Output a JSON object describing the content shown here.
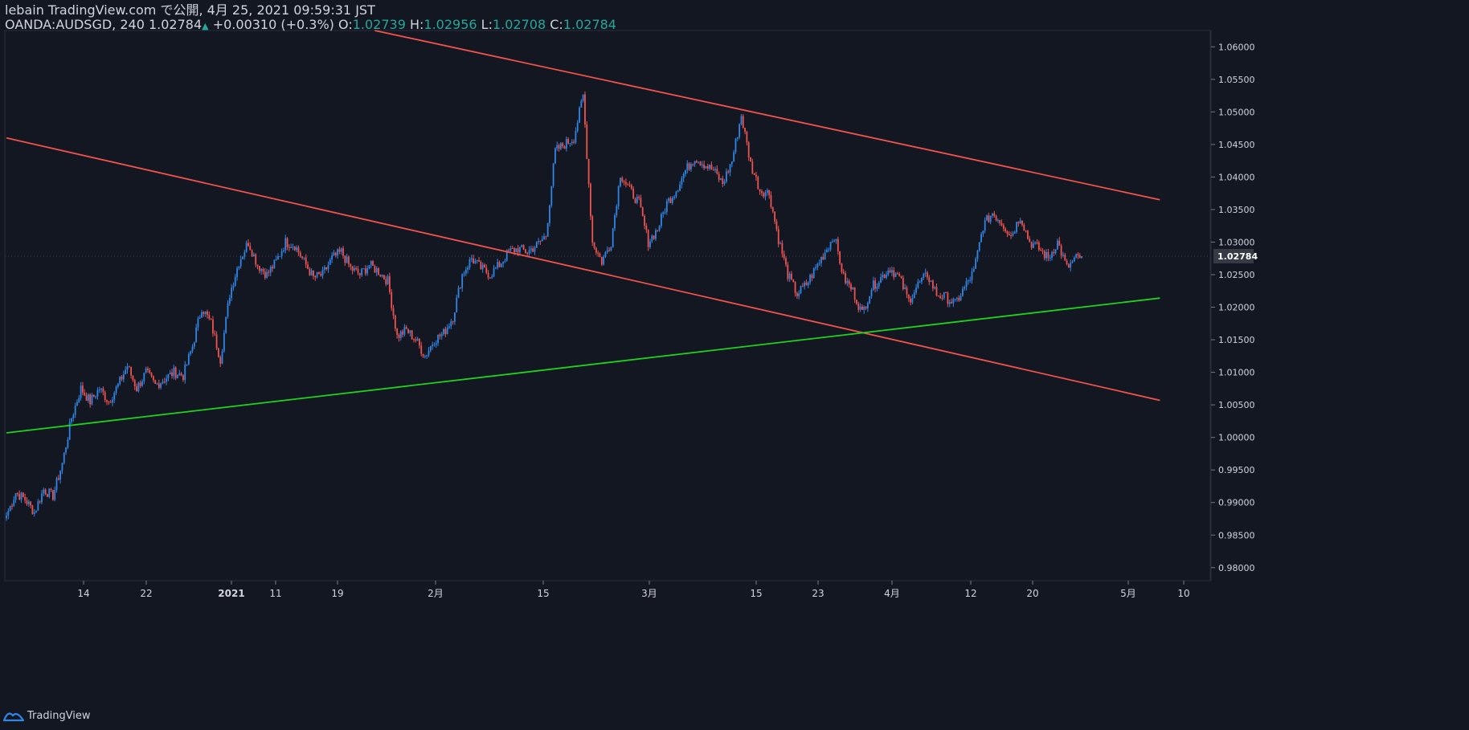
{
  "header": {
    "published_line": "lebain TradingView.com で公開, 4月 25, 2021 09:59:31 JST",
    "symbol_interval": "OANDA:AUDSGD, 240",
    "last_price": "1.02784",
    "change": "+0.00310 (+0.3%)",
    "open_label": "O:",
    "open_value": "1.02739",
    "high_label": "H:",
    "high_value": "1.02956",
    "low_label": "L:",
    "low_value": "1.02708",
    "close_label": "C:",
    "close_value": "1.02784"
  },
  "footer": {
    "brand": "TradingView"
  },
  "colors": {
    "background": "#131722",
    "up": "#2f86e6",
    "down": "#ef5350",
    "channel_line": "#f2534c",
    "support_line": "#1fd21f",
    "axis_text": "#d1d4dc",
    "price_tag_bg": "#363a45",
    "up_text": "#26a69a"
  },
  "chart_data": {
    "type": "candlestick",
    "symbol": "OANDA:AUDSGD",
    "interval": "240",
    "ylim": [
      0.978,
      1.0625
    ],
    "y_ticks": [
      "1.06000",
      "1.05500",
      "1.05000",
      "1.04500",
      "1.04000",
      "1.03500",
      "1.03000",
      "1.02500",
      "1.02000",
      "1.01500",
      "1.01000",
      "1.00500",
      "1.00000",
      "0.99500",
      "0.99000",
      "0.98500",
      "0.98000"
    ],
    "x_ticks": [
      {
        "label": "14",
        "bold": false
      },
      {
        "label": "22",
        "bold": false
      },
      {
        "label": "2021",
        "bold": true
      },
      {
        "label": "11",
        "bold": false
      },
      {
        "label": "19",
        "bold": false
      },
      {
        "label": "2月",
        "bold": false
      },
      {
        "label": "15",
        "bold": false
      },
      {
        "label": "3月",
        "bold": false
      },
      {
        "label": "15",
        "bold": false
      },
      {
        "label": "23",
        "bold": false
      },
      {
        "label": "4月",
        "bold": false
      },
      {
        "label": "12",
        "bold": false
      },
      {
        "label": "20",
        "bold": false
      },
      {
        "label": "5月",
        "bold": false
      },
      {
        "label": "10",
        "bold": false
      }
    ],
    "current_price": 1.02784,
    "current_price_label": "1.02784",
    "close_anchors": [
      [
        0,
        0.988
      ],
      [
        5,
        0.9915
      ],
      [
        10,
        0.9905
      ],
      [
        15,
        0.9885
      ],
      [
        20,
        0.992
      ],
      [
        25,
        0.991
      ],
      [
        30,
        0.996
      ],
      [
        35,
        1.003
      ],
      [
        40,
        1.0075
      ],
      [
        45,
        1.0055
      ],
      [
        50,
        1.0075
      ],
      [
        55,
        1.0055
      ],
      [
        60,
        1.008
      ],
      [
        65,
        1.011
      ],
      [
        70,
        1.0075
      ],
      [
        75,
        1.01
      ],
      [
        80,
        1.008
      ],
      [
        85,
        1.009
      ],
      [
        90,
        1.01
      ],
      [
        95,
        1.0095
      ],
      [
        100,
        1.014
      ],
      [
        105,
        1.02
      ],
      [
        110,
        1.0175
      ],
      [
        115,
        1.012
      ],
      [
        120,
        1.022
      ],
      [
        125,
        1.027
      ],
      [
        130,
        1.03
      ],
      [
        135,
        1.0265
      ],
      [
        140,
        1.025
      ],
      [
        145,
        1.027
      ],
      [
        150,
        1.03
      ],
      [
        155,
        1.0295
      ],
      [
        160,
        1.027
      ],
      [
        165,
        1.0245
      ],
      [
        170,
        1.025
      ],
      [
        175,
        1.0275
      ],
      [
        180,
        1.0285
      ],
      [
        185,
        1.026
      ],
      [
        190,
        1.025
      ],
      [
        195,
        1.0265
      ],
      [
        200,
        1.0255
      ],
      [
        205,
        1.024
      ],
      [
        210,
        1.0155
      ],
      [
        215,
        1.0165
      ],
      [
        220,
        1.015
      ],
      [
        225,
        1.0125
      ],
      [
        230,
        1.015
      ],
      [
        235,
        1.016
      ],
      [
        240,
        1.0185
      ],
      [
        245,
        1.025
      ],
      [
        250,
        1.0275
      ],
      [
        255,
        1.026
      ],
      [
        260,
        1.025
      ],
      [
        265,
        1.0265
      ],
      [
        270,
        1.0285
      ],
      [
        275,
        1.029
      ],
      [
        280,
        1.0285
      ],
      [
        285,
        1.0295
      ],
      [
        290,
        1.031
      ],
      [
        295,
        1.044
      ],
      [
        300,
        1.045
      ],
      [
        305,
        1.046
      ],
      [
        310,
        1.0525
      ],
      [
        315,
        1.03
      ],
      [
        320,
        1.027
      ],
      [
        325,
        1.03
      ],
      [
        330,
        1.0405
      ],
      [
        335,
        1.038
      ],
      [
        340,
        1.036
      ],
      [
        345,
        1.03
      ],
      [
        350,
        1.032
      ],
      [
        355,
        1.036
      ],
      [
        360,
        1.038
      ],
      [
        365,
        1.041
      ],
      [
        370,
        1.043
      ],
      [
        375,
        1.042
      ],
      [
        380,
        1.041
      ],
      [
        385,
        1.039
      ],
      [
        390,
        1.0425
      ],
      [
        395,
        1.0495
      ],
      [
        400,
        1.042
      ],
      [
        405,
        1.038
      ],
      [
        410,
        1.0375
      ],
      [
        415,
        1.0305
      ],
      [
        420,
        1.025
      ],
      [
        425,
        1.022
      ],
      [
        430,
        1.0235
      ],
      [
        435,
        1.026
      ],
      [
        440,
        1.0285
      ],
      [
        445,
        1.031
      ],
      [
        450,
        1.0245
      ],
      [
        455,
        1.0225
      ],
      [
        460,
        1.019
      ],
      [
        465,
        1.023
      ],
      [
        470,
        1.0245
      ],
      [
        475,
        1.026
      ],
      [
        480,
        1.0245
      ],
      [
        485,
        1.021
      ],
      [
        490,
        1.0235
      ],
      [
        495,
        1.025
      ],
      [
        500,
        1.022
      ],
      [
        505,
        1.0215
      ],
      [
        510,
        1.0205
      ],
      [
        515,
        1.023
      ],
      [
        520,
        1.0255
      ],
      [
        525,
        1.0325
      ],
      [
        530,
        1.0345
      ],
      [
        535,
        1.033
      ],
      [
        540,
        1.031
      ],
      [
        545,
        1.034
      ],
      [
        550,
        1.03
      ],
      [
        555,
        1.029
      ],
      [
        560,
        1.0275
      ],
      [
        565,
        1.03
      ],
      [
        570,
        1.026
      ],
      [
        575,
        1.0275
      ],
      [
        578,
        1.02784
      ]
    ],
    "channel_upper_line": {
      "p1": [
        198,
        1.0625
      ],
      "p2": [
        620,
        1.0365
      ]
    },
    "channel_lower_line": {
      "p1": [
        0,
        1.046
      ],
      "p2": [
        620,
        1.0057
      ]
    },
    "support_line": {
      "p1": [
        0,
        1.0007
      ],
      "p2": [
        620,
        1.0214
      ]
    }
  }
}
